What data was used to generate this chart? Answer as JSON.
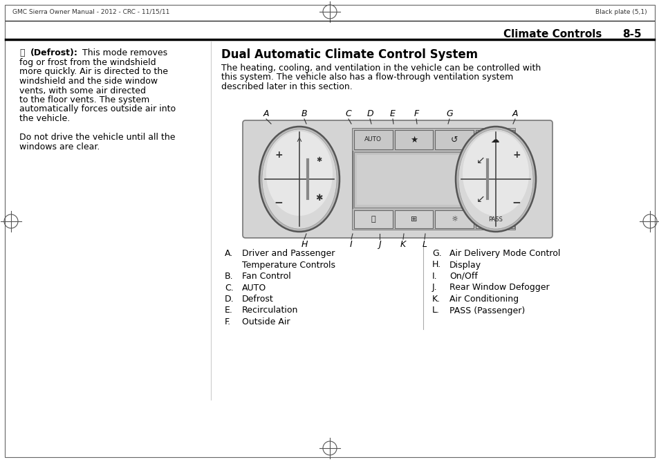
{
  "page_header_left": "GMC Sierra Owner Manual - 2012 - CRC - 11/15/11",
  "page_header_right": "Black plate (5,1)",
  "section_title_left": "Climate Controls",
  "section_title_right": "8-5",
  "right_title": "Dual Automatic Climate Control System",
  "right_intro_lines": [
    "The heating, cooling, and ventilation in the vehicle can be controlled with",
    "this system. The vehicle also has a flow-through ventilation system",
    "described later in this section."
  ],
  "left_body_lines": [
    " (Defrost):",
    "fog or frost from the windshield",
    "more quickly. Air is directed to the",
    "windshield and the side window",
    "vents, with some air directed",
    "to the floor vents. The system",
    "automatically forces outside air into",
    "the vehicle.",
    "",
    "Do not drive the vehicle until all the",
    "windows are clear."
  ],
  "left_list": [
    [
      "A.",
      "Driver and Passenger"
    ],
    [
      "",
      "Temperature Controls"
    ],
    [
      "B.",
      "Fan Control"
    ],
    [
      "C.",
      "AUTO"
    ],
    [
      "D.",
      "Defrost"
    ],
    [
      "E.",
      "Recirculation"
    ],
    [
      "F.",
      "Outside Air"
    ]
  ],
  "right_list": [
    [
      "G.",
      "Air Delivery Mode Control"
    ],
    [
      "H.",
      "Display"
    ],
    [
      "I.",
      "On/Off"
    ],
    [
      "J.",
      "Rear Window Defogger"
    ],
    [
      "K.",
      "Air Conditioning"
    ],
    [
      "L.",
      "PASS (Passenger)"
    ]
  ],
  "bg_color": "#ffffff",
  "panel_fill": "#d4d4d4",
  "panel_border": "#888888",
  "dial_fill": "#c8c8c8",
  "dial_inner_fill": "#e0e0e0",
  "center_fill": "#b0b0b0",
  "display_fill": "#c4c4c4",
  "btn_fill": "#d0d0d0",
  "btn_top_fill": "#c8c8c8"
}
